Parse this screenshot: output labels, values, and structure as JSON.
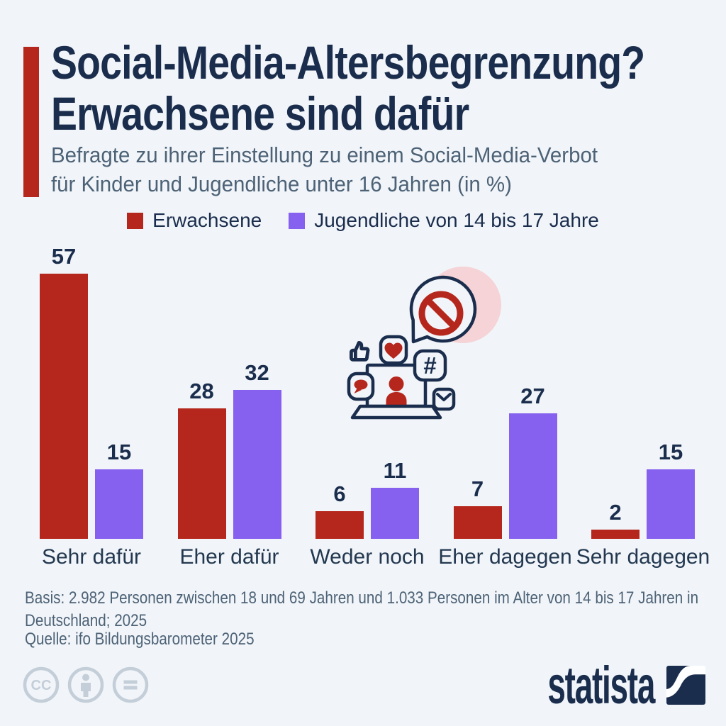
{
  "theme": {
    "background": "#f1f5f9",
    "navy": "#1b2d4d",
    "slate": "#4d6276",
    "red": "#b5271d",
    "purple": "#8660ee",
    "pink": "#f5d3d6",
    "gray": "#c4ced8"
  },
  "header": {
    "title_line1": "Social-Media-Altersbegrenzung?",
    "title_line2": "Erwachsene sind dafür",
    "subtitle_line1": "Befragte zu ihrer Einstellung zu einem Social-Media-Verbot",
    "subtitle_line2": "für Kinder und Jugendliche unter 16 Jahren (in %)"
  },
  "chart_data": {
    "type": "bar",
    "title": "Social-Media-Altersbegrenzung? Erwachsene sind dafür",
    "categories": [
      "Sehr dafür",
      "Eher dafür",
      "Weder noch",
      "Eher dagegen",
      "Sehr dagegen"
    ],
    "series": [
      {
        "key": "erwachsene",
        "name": "Erwachsene",
        "color": "#b5271d",
        "values": [
          57,
          28,
          6,
          7,
          2
        ]
      },
      {
        "key": "jugendliche",
        "name": "Jugendliche von 14 bis 17 Jahre",
        "color": "#8660ee",
        "values": [
          15,
          32,
          11,
          27,
          15
        ]
      }
    ],
    "unit": "%",
    "xlabel": "",
    "ylabel": "",
    "ylim": [
      0,
      57
    ],
    "grid": false,
    "value_labels": true,
    "legend_position": "top"
  },
  "illustration": {
    "name": "social-media-ban-illustration",
    "elements": [
      "prohibition-sign",
      "speech-bubble",
      "laptop",
      "person",
      "thumbs-up",
      "heart",
      "hashtag",
      "chat-bubble",
      "envelope",
      "pink-circle"
    ]
  },
  "footer": {
    "basis": "Basis: 2.982 Personen zwischen 18 und 69 Jahren und 1.033 Personen im Alter von 14 bis 17 Jahren in Deutschland; 2025",
    "source": "Quelle: ifo Bildungsbarometer 2025",
    "brand": "statista"
  }
}
